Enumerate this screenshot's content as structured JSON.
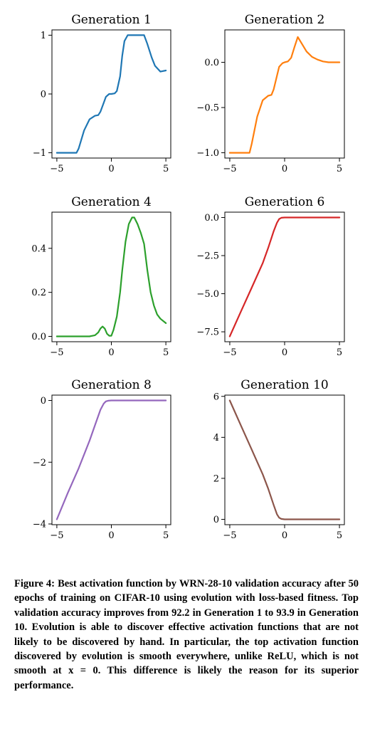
{
  "chart_data": [
    {
      "type": "line",
      "title": "Generation 1",
      "xlim": [
        -5,
        5
      ],
      "ylim": [
        -1,
        1
      ],
      "xticks": [
        "−5",
        "0",
        "5"
      ],
      "yticks": [
        "−1",
        "0",
        "1"
      ],
      "xtick_values": [
        -5,
        0,
        5
      ],
      "ytick_values": [
        -1,
        0,
        1
      ],
      "color": "#1f77b4",
      "x": [
        -5,
        -4,
        -3.2,
        -3,
        -2.5,
        -2,
        -1.5,
        -1.2,
        -1,
        -0.7,
        -0.5,
        -0.2,
        0,
        0.3,
        0.5,
        0.8,
        1,
        1.2,
        1.5,
        2,
        2.5,
        3,
        3.3,
        3.7,
        4,
        4.5,
        5
      ],
      "y": [
        -1,
        -1,
        -1,
        -0.93,
        -0.62,
        -0.43,
        -0.37,
        -0.36,
        -0.3,
        -0.15,
        -0.05,
        0,
        0,
        0.01,
        0.05,
        0.3,
        0.65,
        0.9,
        1,
        1,
        1,
        1,
        0.85,
        0.62,
        0.48,
        0.38,
        0.4
      ]
    },
    {
      "type": "line",
      "title": "Generation 2",
      "xlim": [
        -5,
        5
      ],
      "ylim": [
        -1,
        0.3
      ],
      "xticks": [
        "−5",
        "0",
        "5"
      ],
      "yticks": [
        "−1.0",
        "−0.5",
        "0.0"
      ],
      "xtick_values": [
        -5,
        0,
        5
      ],
      "ytick_values": [
        -1,
        -0.5,
        0
      ],
      "color": "#ff7f0e",
      "x": [
        -5,
        -4,
        -3.2,
        -3,
        -2.5,
        -2,
        -1.5,
        -1.2,
        -1,
        -0.7,
        -0.5,
        -0.2,
        0,
        0.3,
        0.6,
        0.9,
        1.2,
        1.5,
        2,
        2.5,
        3,
        3.5,
        4,
        4.5,
        5
      ],
      "y": [
        -1,
        -1,
        -1,
        -0.9,
        -0.6,
        -0.42,
        -0.37,
        -0.36,
        -0.3,
        -0.15,
        -0.05,
        -0.01,
        0,
        0.01,
        0.05,
        0.17,
        0.28,
        0.22,
        0.12,
        0.06,
        0.03,
        0.01,
        0,
        0,
        0
      ]
    },
    {
      "type": "line",
      "title": "Generation 4",
      "xlim": [
        -5,
        5
      ],
      "ylim": [
        0,
        0.54
      ],
      "xticks": [
        "−5",
        "0",
        "5"
      ],
      "yticks": [
        "0.0",
        "0.2",
        "0.4"
      ],
      "xtick_values": [
        -5,
        0,
        5
      ],
      "ytick_values": [
        0,
        0.2,
        0.4
      ],
      "color": "#2ca02c",
      "x": [
        -5,
        -3,
        -2,
        -1.5,
        -1.2,
        -1,
        -0.8,
        -0.6,
        -0.4,
        -0.2,
        0,
        0.2,
        0.5,
        0.8,
        1,
        1.3,
        1.6,
        1.9,
        2.1,
        2.4,
        2.7,
        3,
        3.3,
        3.6,
        3.9,
        4.2,
        4.5,
        5
      ],
      "y": [
        0,
        0,
        0,
        0.005,
        0.018,
        0.036,
        0.045,
        0.035,
        0.012,
        0.003,
        0.003,
        0.03,
        0.09,
        0.2,
        0.3,
        0.43,
        0.51,
        0.54,
        0.54,
        0.51,
        0.47,
        0.42,
        0.3,
        0.2,
        0.14,
        0.1,
        0.08,
        0.06
      ]
    },
    {
      "type": "line",
      "title": "Generation 6",
      "xlim": [
        -5,
        5
      ],
      "ylim": [
        -7.8,
        0
      ],
      "xticks": [
        "−5",
        "0",
        "5"
      ],
      "yticks": [
        "0.0",
        "−2.5",
        "−5.0",
        "−7.5"
      ],
      "xtick_values": [
        -5,
        0,
        5
      ],
      "ytick_values": [
        0,
        -2.5,
        -5,
        -7.5
      ],
      "color": "#d62728",
      "x": [
        -5,
        -4,
        -3,
        -2,
        -1.5,
        -1,
        -0.7,
        -0.5,
        -0.3,
        0,
        1,
        2,
        3,
        4,
        5
      ],
      "y": [
        -7.8,
        -6.2,
        -4.6,
        -3,
        -2,
        -0.9,
        -0.35,
        -0.1,
        -0.02,
        0,
        0,
        0,
        0,
        0,
        0
      ]
    },
    {
      "type": "line",
      "title": "Generation 8",
      "xlim": [
        -5,
        5
      ],
      "ylim": [
        -3.85,
        0
      ],
      "xticks": [
        "−5",
        "0",
        "5"
      ],
      "yticks": [
        "0",
        "−2",
        "−4"
      ],
      "xtick_values": [
        -5,
        0,
        5
      ],
      "ytick_values": [
        0,
        -2,
        -4
      ],
      "color": "#9467bd",
      "x": [
        -5,
        -4,
        -3,
        -2,
        -1.5,
        -1,
        -0.7,
        -0.5,
        -0.3,
        0,
        1,
        2,
        3,
        4,
        5
      ],
      "y": [
        -3.85,
        -3,
        -2.2,
        -1.3,
        -0.8,
        -0.3,
        -0.1,
        -0.03,
        -0.01,
        0,
        0,
        0,
        0,
        0,
        0
      ]
    },
    {
      "type": "line",
      "title": "Generation 10",
      "xlim": [
        -5,
        5
      ],
      "ylim": [
        0,
        5.8
      ],
      "xticks": [
        "−5",
        "0",
        "5"
      ],
      "yticks": [
        "0",
        "2",
        "4",
        "6"
      ],
      "xtick_values": [
        -5,
        0,
        5
      ],
      "ytick_values": [
        0,
        2,
        4,
        6
      ],
      "color": "#8c564b",
      "x": [
        -5,
        -4,
        -3,
        -2,
        -1.5,
        -1,
        -0.7,
        -0.5,
        -0.3,
        0,
        1,
        2,
        3,
        4,
        5
      ],
      "y": [
        5.8,
        4.6,
        3.4,
        2.2,
        1.5,
        0.7,
        0.25,
        0.08,
        0.02,
        0,
        0,
        0,
        0,
        0,
        0
      ]
    }
  ],
  "caption": "Figure 4: Best activation function by WRN-28-10 validation accuracy after 50 epochs of training on CIFAR-10 using evolution with loss-based fitness. Top validation accuracy improves from 92.2 in Generation 1 to 93.9 in Generation 10. Evolution is able to discover effective activation functions that are not likely to be discovered by hand. In particular, the top activation function discovered by evolution is smooth everywhere, unlike ReLU, which is not smooth at x = 0. This difference is likely the reason for its superior performance."
}
